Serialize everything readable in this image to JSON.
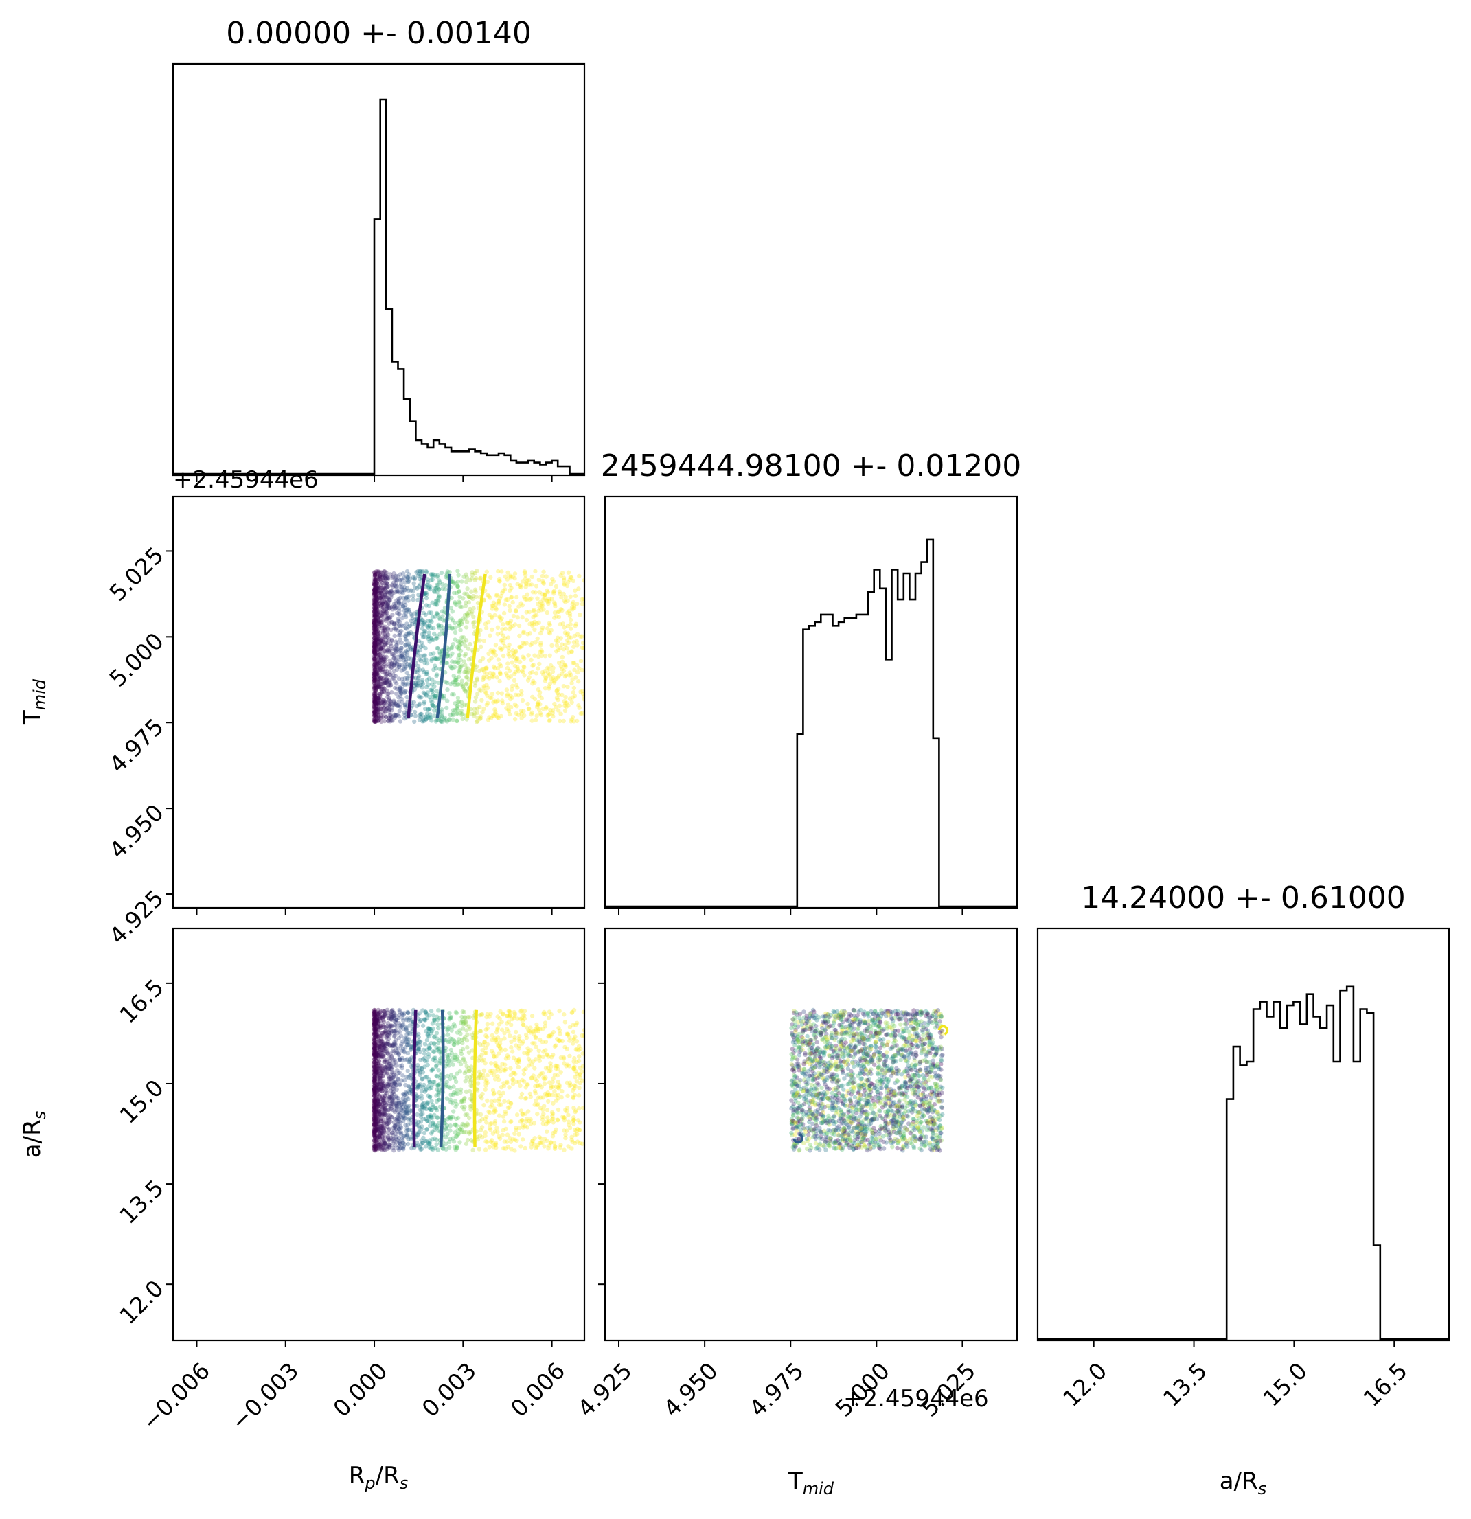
{
  "chart_data": {
    "type": "corner",
    "parameters": [
      {
        "key": "rp",
        "label_main": "R",
        "label_sub": "p",
        "label_tail": "/R",
        "label_sub2": "s"
      },
      {
        "key": "tmid",
        "label_main": "T",
        "label_sub": "mid",
        "label_tail": "",
        "label_sub2": ""
      },
      {
        "key": "ars",
        "label_main": "a/R",
        "label_sub": "s",
        "label_tail": "",
        "label_sub2": ""
      }
    ],
    "titles": [
      "0.00000 +- 0.00140",
      "2459444.98100 +- 0.01200",
      "14.24000 +- 0.61000"
    ],
    "offset_text": "+2.45944e6",
    "axes": {
      "rp": {
        "range": [
          -0.0068,
          0.0071
        ],
        "ticks": [
          -0.006,
          -0.003,
          0.0,
          0.003,
          0.006
        ],
        "tick_labels": [
          "−0.006",
          "−0.003",
          "0.000",
          "0.003",
          "0.006"
        ]
      },
      "tmid": {
        "range": [
          4.921,
          5.0409
        ],
        "ticks": [
          4.925,
          4.95,
          4.975,
          5.0,
          5.025
        ],
        "tick_labels": [
          "4.925",
          "4.950",
          "4.975",
          "5.000",
          "5.025"
        ]
      },
      "ars": {
        "range": [
          11.16,
          17.32
        ],
        "ticks": [
          12.0,
          13.5,
          15.0,
          16.5
        ],
        "tick_labels": [
          "12.0",
          "13.5",
          "15.0",
          "16.5"
        ]
      }
    },
    "histograms": {
      "rp": {
        "start": -0.0002,
        "bin_width": 0.0002,
        "counts": [
          0.0,
          0.68,
          1.0,
          0.44,
          0.3,
          0.28,
          0.2,
          0.14,
          0.09,
          0.08,
          0.07,
          0.09,
          0.08,
          0.07,
          0.06,
          0.06,
          0.06,
          0.065,
          0.06,
          0.055,
          0.05,
          0.05,
          0.055,
          0.05,
          0.035,
          0.03,
          0.03,
          0.035,
          0.03,
          0.025,
          0.03,
          0.035,
          0.02,
          0.02
        ]
      },
      "tmid": {
        "start": 4.9752,
        "bin_width": 0.00172,
        "counts": [
          0.0,
          0.46,
          0.74,
          0.75,
          0.76,
          0.78,
          0.78,
          0.75,
          0.76,
          0.77,
          0.77,
          0.78,
          0.78,
          0.84,
          0.9,
          0.85,
          0.66,
          0.9,
          0.82,
          0.89,
          0.82,
          0.89,
          0.92,
          0.98,
          0.45,
          0.0
        ]
      },
      "ars": {
        "start": 13.99,
        "bin_width": 0.1,
        "counts": [
          0.64,
          0.78,
          0.73,
          0.74,
          0.88,
          0.9,
          0.86,
          0.9,
          0.83,
          0.89,
          0.9,
          0.84,
          0.92,
          0.86,
          0.83,
          0.89,
          0.74,
          0.93,
          0.94,
          0.74,
          0.88,
          0.87,
          0.25,
          0.0
        ]
      }
    },
    "samples": {
      "rp_range": [
        0.0,
        0.0071
      ],
      "tmid_range": [
        4.9752,
        5.0192
      ],
      "ars_range": [
        14.0,
        16.1
      ],
      "n_points": 2400
    },
    "contours": {
      "colors": [
        "#3b0f6b",
        "#2f5b8c",
        "#f1e51d"
      ],
      "rp_tmid": [
        {
          "x0": 0.00115,
          "y0": 4.9763,
          "x1": 0.0017,
          "y1": 5.0183
        },
        {
          "x0": 0.00213,
          "y0": 4.9763,
          "x1": 0.00255,
          "y1": 5.0183
        },
        {
          "x0": 0.00315,
          "y0": 4.9763,
          "x1": 0.00375,
          "y1": 5.0183
        }
      ],
      "rp_ars": [
        {
          "x0": 0.00135,
          "y0": 14.05,
          "x1": 0.0014,
          "y1": 16.1
        },
        {
          "x0": 0.00225,
          "y0": 14.05,
          "x1": 0.0023,
          "y1": 16.1
        },
        {
          "x0": 0.0034,
          "y0": 14.05,
          "x1": 0.00345,
          "y1": 16.1
        }
      ]
    },
    "scatter_colormap": [
      "#440154",
      "#3b528b",
      "#21918c",
      "#5ec962",
      "#fde725"
    ]
  }
}
